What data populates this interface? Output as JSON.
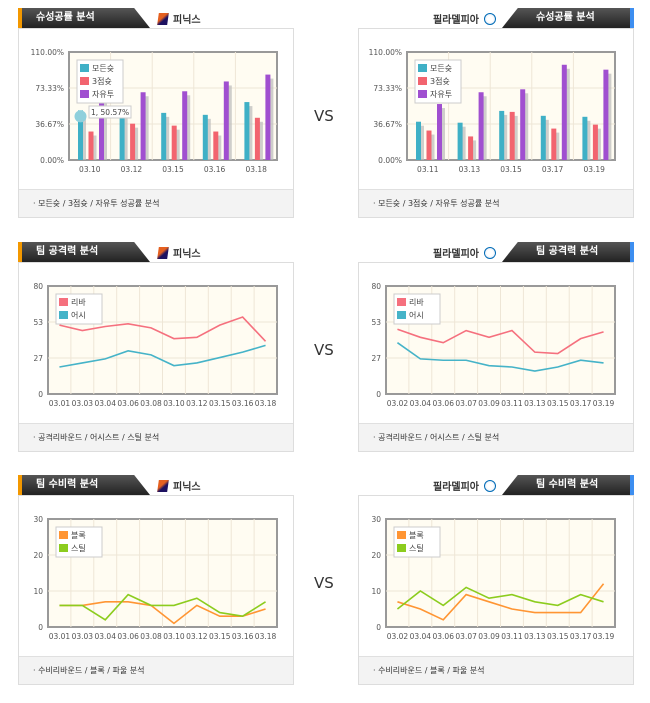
{
  "vs_label": "VS",
  "sections": [
    {
      "title": "슈성공률 분석",
      "footer": "·  모든슛 / 3점슛 / 자유투 성공률 분석",
      "left_team": "피닉스",
      "right_team": "필라델피아"
    },
    {
      "title": "팀 공격력 분석",
      "footer": "· 공격리바운드 / 어시스트 / 스틸 분석",
      "left_team": "피닉스",
      "right_team": "필라델피아"
    },
    {
      "title": "팀 수비력 분석",
      "footer": "· 수비리바운드 / 블록 / 파울 분석",
      "left_team": "피닉스",
      "right_team": "필라델피아"
    }
  ],
  "chart_data": [
    {
      "type": "bar",
      "team": "피닉스",
      "categories": [
        "03.10",
        "03.12",
        "03.15",
        "03.16",
        "03.18"
      ],
      "yticks": [
        "0.00%",
        "36.67%",
        "73.33%",
        "110.00%"
      ],
      "ylim": [
        0,
        110
      ],
      "series": [
        {
          "name": "모든슛",
          "color": "#3fb0c6",
          "values": [
            50.57,
            55,
            48,
            46,
            59
          ]
        },
        {
          "name": "3점슛",
          "color": "#f2646f",
          "values": [
            29,
            37,
            35,
            29,
            43
          ]
        },
        {
          "name": "자유투",
          "color": "#a04fd0",
          "values": [
            62,
            69,
            70,
            80,
            87
          ]
        }
      ],
      "tooltip": "1, 50.57%"
    },
    {
      "type": "bar",
      "team": "필라델피아",
      "categories": [
        "03.11",
        "03.13",
        "03.15",
        "03.17",
        "03.19"
      ],
      "yticks": [
        "0.00%",
        "36.67%",
        "73.33%",
        "110.00%"
      ],
      "ylim": [
        0,
        110
      ],
      "series": [
        {
          "name": "모든슛",
          "color": "#3fb0c6",
          "values": [
            39,
            38,
            50,
            45,
            44
          ]
        },
        {
          "name": "3점슛",
          "color": "#f2646f",
          "values": [
            30,
            24,
            49,
            32,
            36
          ]
        },
        {
          "name": "자유투",
          "color": "#a04fd0",
          "values": [
            57,
            69,
            72,
            97,
            92
          ]
        }
      ]
    },
    {
      "type": "line",
      "team": "피닉스",
      "categories": [
        "03.01",
        "03.03",
        "03.04",
        "03.06",
        "03.08",
        "03.10",
        "03.12",
        "03.15",
        "03.16",
        "03.18"
      ],
      "yticks": [
        "0",
        "27",
        "53",
        "80"
      ],
      "ylim": [
        0,
        80
      ],
      "series": [
        {
          "name": "리바",
          "color": "#f5707e",
          "values": [
            51,
            47,
            50,
            52,
            49,
            41,
            42,
            51,
            57,
            39
          ]
        },
        {
          "name": "어시",
          "color": "#45b3c8",
          "values": [
            20,
            23,
            26,
            32,
            29,
            21,
            23,
            27,
            31,
            36
          ]
        }
      ]
    },
    {
      "type": "line",
      "team": "필라델피아",
      "categories": [
        "03.02",
        "03.04",
        "03.06",
        "03.07",
        "03.09",
        "03.11",
        "03.13",
        "03.15",
        "03.17",
        "03.19"
      ],
      "yticks": [
        "0",
        "27",
        "53",
        "80"
      ],
      "ylim": [
        0,
        80
      ],
      "series": [
        {
          "name": "리바",
          "color": "#f5707e",
          "values": [
            48,
            42,
            38,
            47,
            42,
            47,
            31,
            30,
            41,
            46
          ]
        },
        {
          "name": "어시",
          "color": "#45b3c8",
          "values": [
            38,
            26,
            25,
            25,
            21,
            20,
            17,
            20,
            25,
            23
          ]
        }
      ]
    },
    {
      "type": "line",
      "team": "피닉스",
      "categories": [
        "03.01",
        "03.03",
        "03.04",
        "03.06",
        "03.08",
        "03.10",
        "03.12",
        "03.15",
        "03.16",
        "03.18"
      ],
      "yticks": [
        "0",
        "10",
        "20",
        "30"
      ],
      "ylim": [
        0,
        30
      ],
      "series": [
        {
          "name": "블록",
          "color": "#ff9533",
          "values": [
            6,
            6,
            7,
            7,
            6,
            1,
            6,
            3,
            3,
            5
          ]
        },
        {
          "name": "스틸",
          "color": "#8ccc1e",
          "values": [
            6,
            6,
            2,
            9,
            6,
            6,
            8,
            4,
            3,
            7
          ]
        }
      ]
    },
    {
      "type": "line",
      "team": "필라델피아",
      "categories": [
        "03.02",
        "03.04",
        "03.06",
        "03.07",
        "03.09",
        "03.11",
        "03.13",
        "03.15",
        "03.17",
        "03.19"
      ],
      "yticks": [
        "0",
        "10",
        "20",
        "30"
      ],
      "ylim": [
        0,
        30
      ],
      "series": [
        {
          "name": "블록",
          "color": "#ff9533",
          "values": [
            7,
            5,
            2,
            9,
            7,
            5,
            4,
            4,
            4,
            12
          ]
        },
        {
          "name": "스틸",
          "color": "#8ccc1e",
          "values": [
            5,
            10,
            6,
            11,
            8,
            9,
            7,
            6,
            9,
            7
          ]
        }
      ]
    }
  ]
}
